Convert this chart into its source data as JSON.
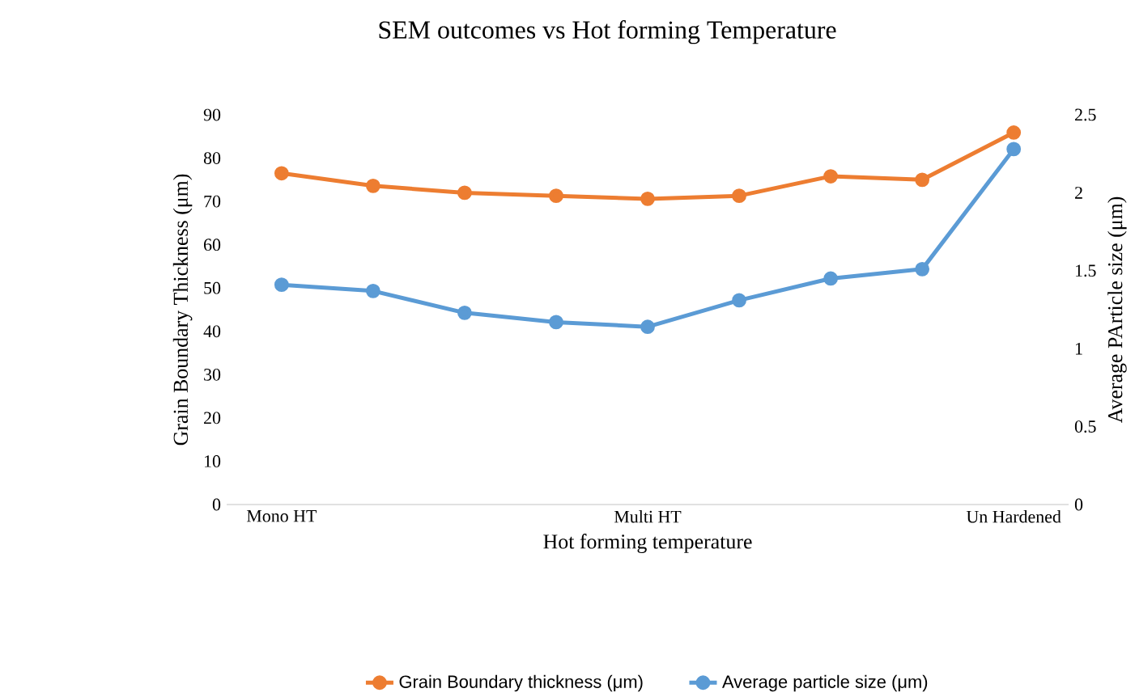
{
  "chart_data": {
    "type": "line",
    "title": "SEM outcomes vs Hot forming Temperature",
    "xlabel": "Hot forming temperature",
    "ylabel": "Grain Boundary Thickness (μm)",
    "y2label": "Average PArticle size (μm)",
    "categories": [
      "Mono HT",
      null,
      null,
      null,
      "Multi HT",
      null,
      null,
      null,
      "Un Hardened"
    ],
    "series": [
      {
        "name": "Grain Boundary thickness (μm)",
        "color": "#ed7d31",
        "values": [
          76.5,
          73.6,
          72,
          71.3,
          70.6,
          71.3,
          75.8,
          75,
          85.9
        ]
      },
      {
        "name": "Average particle size (μm)",
        "color": "#5b9bd5",
        "axis": "y2",
        "values": [
          1.41,
          1.37,
          1.23,
          1.17,
          1.14,
          1.31,
          1.45,
          1.51,
          2.28
        ]
      }
    ],
    "ylim": [
      0,
      90
    ],
    "yticks": [
      0,
      10,
      20,
      30,
      40,
      50,
      60,
      70,
      80,
      90
    ],
    "y2lim": [
      0,
      2.5
    ],
    "y2ticks": [
      0,
      {
        "value": 0.5,
        "label": "0.5"
      },
      1,
      {
        "value": 1.5,
        "label": "1.5"
      },
      2,
      {
        "value": 2.5,
        "label": "2.5"
      }
    ],
    "marker": "circle",
    "legend": "bottom",
    "grid": false
  }
}
